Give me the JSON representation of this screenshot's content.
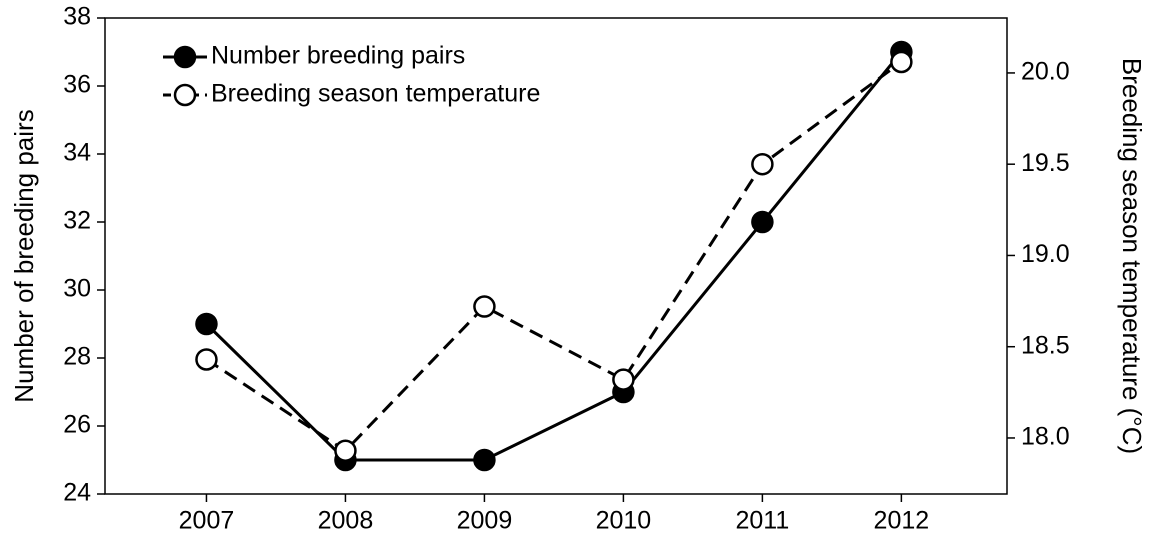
{
  "chart_data": {
    "type": "line",
    "x": [
      2007,
      2008,
      2009,
      2010,
      2011,
      2012
    ],
    "xlim": [
      2006.27,
      2012.76
    ],
    "xticks": [
      2007,
      2008,
      2009,
      2010,
      2011,
      2012
    ],
    "ylabel": "Number of breeding pairs",
    "y2label": "Breeding season temperature (°C)",
    "ylim": [
      24,
      38
    ],
    "yticks": [
      24,
      26,
      28,
      30,
      32,
      34,
      36,
      38
    ],
    "y2lim": [
      17.693,
      20.301
    ],
    "y2ticks": [
      {
        "value": 18.0,
        "label": "18.0"
      },
      18.5,
      {
        "value": 19.0,
        "label": "19.0"
      },
      19.5,
      {
        "value": 20.0,
        "label": "20.0"
      }
    ],
    "legend": "upper left",
    "series": [
      {
        "name": "Number breeding pairs",
        "color": "#000000",
        "line_style": "solid",
        "marker_fill": "#000000",
        "values": [
          29,
          25,
          25,
          27,
          32,
          37
        ]
      },
      {
        "name": "Breeding season temperature",
        "color": "#000000",
        "line_style": "dashed",
        "marker_fill": "#ffffff",
        "axis": "y2",
        "values": [
          18.43,
          17.93,
          18.72,
          18.32,
          19.5,
          20.06
        ]
      }
    ]
  }
}
